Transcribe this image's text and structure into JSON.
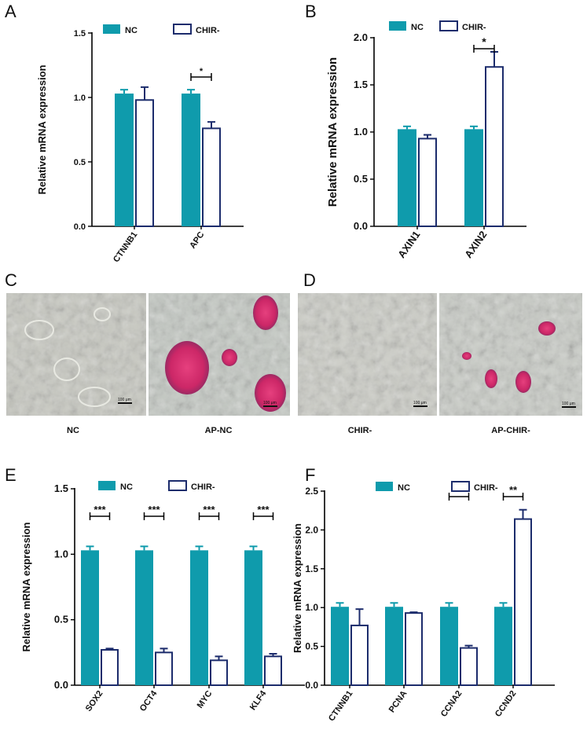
{
  "colors": {
    "nc_fill": "#0f9bac",
    "chir_stroke": "#1c2c6c",
    "axis": "#000000",
    "stain_pink": "#d12a6d",
    "stain_blue": "#4f8fa8",
    "micrograph_bg": "#c9cbc3"
  },
  "panel_labels": {
    "a": "A",
    "b": "B",
    "c": "C",
    "d": "D",
    "e": "E",
    "f": "F"
  },
  "micrographs": {
    "c_left_caption": "NC",
    "c_right_caption": "AP-NC",
    "d_left_caption": "CHIR-",
    "d_right_caption": "AP-CHIR-",
    "scale_bar_text": "100 μm"
  },
  "chart_data": [
    {
      "panel": "A",
      "type": "bar",
      "ylabel": "Relative mRNA expression",
      "ylim": [
        0,
        1.5
      ],
      "yticks": [
        "0.0",
        "0.5",
        "1.0",
        "1.5"
      ],
      "categories": [
        "CTNNB1",
        "APC"
      ],
      "series": [
        {
          "name": "NC",
          "values": [
            1.03,
            1.03
          ],
          "errors": [
            0.03,
            0.03
          ]
        },
        {
          "name": "CHIR-",
          "values": [
            0.98,
            0.76
          ],
          "errors": [
            0.1,
            0.05
          ]
        }
      ],
      "significance": [
        {
          "category_index": 1,
          "label": "*"
        }
      ]
    },
    {
      "panel": "B",
      "type": "bar",
      "ylabel": "Relative mRNA expression",
      "ylim": [
        0,
        2.0
      ],
      "yticks": [
        "0.0",
        "0.5",
        "1.0",
        "1.5",
        "2.0"
      ],
      "categories": [
        "AXIN1",
        "AXIN2"
      ],
      "series": [
        {
          "name": "NC",
          "values": [
            1.03,
            1.03
          ],
          "errors": [
            0.03,
            0.03
          ]
        },
        {
          "name": "CHIR-",
          "values": [
            0.93,
            1.69
          ],
          "errors": [
            0.04,
            0.16
          ]
        }
      ],
      "significance": [
        {
          "category_index": 1,
          "label": "*"
        }
      ]
    },
    {
      "panel": "E",
      "type": "bar",
      "ylabel": "Relative mRNA expression",
      "ylim": [
        0,
        1.5
      ],
      "yticks": [
        "0.0",
        "0.5",
        "1.0",
        "1.5"
      ],
      "categories": [
        "SOX2",
        "OCT4",
        "MYC",
        "KLF4"
      ],
      "series": [
        {
          "name": "NC",
          "values": [
            1.03,
            1.03,
            1.03,
            1.03
          ],
          "errors": [
            0.03,
            0.03,
            0.03,
            0.03
          ]
        },
        {
          "name": "CHIR-",
          "values": [
            0.27,
            0.25,
            0.19,
            0.22
          ],
          "errors": [
            0.01,
            0.03,
            0.03,
            0.02
          ]
        }
      ],
      "significance": [
        {
          "category_index": 0,
          "label": "***"
        },
        {
          "category_index": 1,
          "label": "***"
        },
        {
          "category_index": 2,
          "label": "***"
        },
        {
          "category_index": 3,
          "label": "***"
        }
      ]
    },
    {
      "panel": "F",
      "type": "bar",
      "ylabel": "Relative mRNA expression",
      "ylim": [
        0,
        2.5
      ],
      "yticks": [
        "0.0",
        "0.5",
        "1.0",
        "1.5",
        "2.0",
        "2.5"
      ],
      "categories": [
        "CTNNB1",
        "PCNA",
        "CCNA2",
        "CCND2"
      ],
      "series": [
        {
          "name": "NC",
          "values": [
            1.01,
            1.01,
            1.01,
            1.01
          ],
          "errors": [
            0.05,
            0.05,
            0.05,
            0.05
          ]
        },
        {
          "name": "CHIR-",
          "values": [
            0.77,
            0.93,
            0.48,
            2.14
          ],
          "errors": [
            0.21,
            0.01,
            0.03,
            0.12
          ]
        }
      ],
      "significance": [
        {
          "category_index": 2,
          "label": "**"
        },
        {
          "category_index": 3,
          "label": "**"
        }
      ]
    }
  ]
}
